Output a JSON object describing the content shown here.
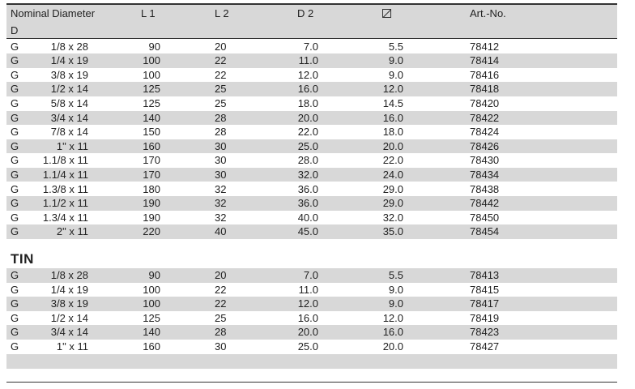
{
  "header": {
    "nominal": "Nominal Diameter",
    "nominal2": "D",
    "l1": "L 1",
    "l2": "L 2",
    "d2": "D 2",
    "square_icon": "square-diagonal-icon",
    "art": "Art.-No."
  },
  "table1": [
    [
      "G",
      "1/8 x 28",
      "90",
      "20",
      "7.0",
      "5.5",
      "78412"
    ],
    [
      "G",
      "1/4 x 19",
      "100",
      "22",
      "11.0",
      "9.0",
      "78414"
    ],
    [
      "G",
      "3/8 x 19",
      "100",
      "22",
      "12.0",
      "9.0",
      "78416"
    ],
    [
      "G",
      "1/2 x 14",
      "125",
      "25",
      "16.0",
      "12.0",
      "78418"
    ],
    [
      "G",
      "5/8 x 14",
      "125",
      "25",
      "18.0",
      "14.5",
      "78420"
    ],
    [
      "G",
      "3/4 x 14",
      "140",
      "28",
      "20.0",
      "16.0",
      "78422"
    ],
    [
      "G",
      "7/8 x 14",
      "150",
      "28",
      "22.0",
      "18.0",
      "78424"
    ],
    [
      "G",
      "1\" x 11",
      "160",
      "30",
      "25.0",
      "20.0",
      "78426"
    ],
    [
      "G",
      "1.1/8 x 11",
      "170",
      "30",
      "28.0",
      "22.0",
      "78430"
    ],
    [
      "G",
      "1.1/4 x 11",
      "170",
      "30",
      "32.0",
      "24.0",
      "78434"
    ],
    [
      "G",
      "1.3/8 x 11",
      "180",
      "32",
      "36.0",
      "29.0",
      "78438"
    ],
    [
      "G",
      "1.1/2 x 11",
      "190",
      "32",
      "36.0",
      "29.0",
      "78442"
    ],
    [
      "G",
      "1.3/4 x 11",
      "190",
      "32",
      "40.0",
      "32.0",
      "78450"
    ],
    [
      "G",
      "2\" x 11",
      "220",
      "40",
      "45.0",
      "35.0",
      "78454"
    ]
  ],
  "section_title": "TIN",
  "table2": [
    [
      "G",
      "1/8 x 28",
      "90",
      "20",
      "7.0",
      "5.5",
      "78413"
    ],
    [
      "G",
      "1/4 x 19",
      "100",
      "22",
      "11.0",
      "9.0",
      "78415"
    ],
    [
      "G",
      "3/8 x 19",
      "100",
      "22",
      "12.0",
      "9.0",
      "78417"
    ],
    [
      "G",
      "1/2 x 14",
      "125",
      "25",
      "16.0",
      "12.0",
      "78419"
    ],
    [
      "G",
      "3/4 x 14",
      "140",
      "28",
      "20.0",
      "16.0",
      "78423"
    ],
    [
      "G",
      "1\" x 11",
      "160",
      "30",
      "25.0",
      "20.0",
      "78427"
    ]
  ]
}
